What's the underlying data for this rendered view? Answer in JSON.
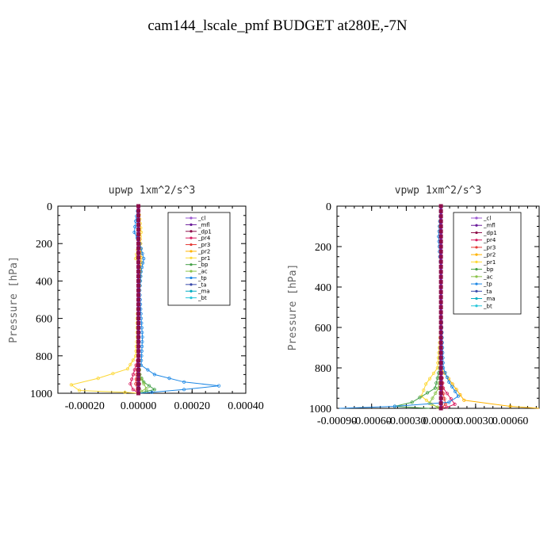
{
  "figure": {
    "title": "cam144_lscale_pmf  BUDGET at280E,-7N"
  },
  "chart_data": [
    {
      "type": "line",
      "title": "upwp  1xm^2/s^3",
      "ylabel": "Pressure [hPa]",
      "xlabel": "",
      "xlim": [
        -0.0003,
        0.0004
      ],
      "ylim": [
        1000,
        0
      ],
      "xticks": [
        -0.0002,
        0,
        0.0002,
        0.0004
      ],
      "xticklabels": [
        "-0.00020",
        "0.00000",
        "0.00020",
        "0.00040"
      ],
      "yticks": [
        0,
        200,
        400,
        600,
        800,
        1000
      ],
      "yticklabels": [
        "0",
        "200",
        "400",
        "600",
        "800",
        "1000"
      ],
      "legend_position": "top-right",
      "series": [
        {
          "name": "_cl",
          "color": "#9b59d0",
          "x": [
            0,
            0,
            0,
            0,
            0,
            0,
            0,
            0,
            0,
            0,
            0
          ],
          "y": [
            0,
            100,
            200,
            300,
            400,
            500,
            600,
            700,
            800,
            900,
            1000
          ]
        },
        {
          "name": "_mfl",
          "color": "#6a1b9a",
          "x": [
            0,
            0,
            0,
            0,
            0,
            0,
            0,
            0,
            0,
            0,
            0
          ],
          "y": [
            0,
            100,
            200,
            300,
            400,
            500,
            600,
            700,
            800,
            900,
            1000
          ]
        },
        {
          "name": "_dp1",
          "color": "#8e0f4a",
          "x": [
            0,
            0,
            0,
            0,
            0,
            0,
            0,
            0,
            0,
            5e-06,
            2e-06
          ],
          "y": [
            0,
            100,
            200,
            300,
            400,
            500,
            600,
            700,
            800,
            900,
            1000
          ]
        },
        {
          "name": "_pr4",
          "color": "#d81b60",
          "x": [
            0,
            0,
            0,
            0,
            0,
            0,
            0,
            0,
            2e-06,
            -3e-05,
            -2e-05,
            0
          ],
          "y": [
            0,
            100,
            200,
            300,
            400,
            500,
            600,
            700,
            800,
            950,
            980,
            1000
          ]
        },
        {
          "name": "_pr3",
          "color": "#e53935",
          "x": [
            0,
            0,
            0,
            0,
            0,
            0,
            0,
            0,
            0,
            -1e-05,
            -5e-06,
            0
          ],
          "y": [
            0,
            100,
            200,
            300,
            400,
            500,
            600,
            700,
            800,
            950,
            980,
            1000
          ]
        },
        {
          "name": "_pr2",
          "color": "#ffb300",
          "x": [
            0,
            3e-06,
            8e-06,
            1e-05,
            5e-06,
            0,
            0,
            0,
            0,
            0
          ],
          "y": [
            0,
            130,
            200,
            300,
            400,
            500,
            600,
            700,
            800,
            1000
          ]
        },
        {
          "name": "_pr1",
          "color": "#fdd835",
          "x": [
            0,
            1e-05,
            -1e-05,
            5e-06,
            5e-06,
            0,
            -5e-06,
            -5e-06,
            -1e-05,
            -4e-05,
            -0.00015,
            -0.00025,
            -0.00022,
            -5e-05,
            0
          ],
          "y": [
            0,
            140,
            280,
            300,
            400,
            500,
            600,
            700,
            800,
            870,
            920,
            955,
            985,
            995,
            1000
          ]
        },
        {
          "name": "_bp",
          "color": "#43a047",
          "x": [
            0,
            0,
            0,
            0,
            0,
            0,
            0,
            0,
            0,
            3e-06,
            2e-05,
            4e-05,
            6e-05,
            3e-05,
            0
          ],
          "y": [
            0,
            100,
            200,
            300,
            400,
            500,
            600,
            700,
            800,
            900,
            940,
            960,
            980,
            990,
            1000
          ]
        },
        {
          "name": "_ac",
          "color": "#8bc34a",
          "x": [
            0,
            0,
            0,
            0,
            0,
            0,
            0,
            0,
            2e-06,
            5e-06,
            2e-05,
            3e-05,
            1e-05,
            0
          ],
          "y": [
            0,
            100,
            200,
            300,
            400,
            500,
            600,
            700,
            800,
            900,
            950,
            975,
            990,
            1000
          ]
        },
        {
          "name": "_tp",
          "color": "#1e88e5",
          "x": [
            0,
            -1e-05,
            -1.5e-05,
            5e-06,
            2e-05,
            1e-05,
            5e-06,
            1e-05,
            1.5e-05,
            1e-05,
            6e-05,
            0.00017,
            0.0003,
            0.00017,
            5e-05,
            0
          ],
          "y": [
            0,
            80,
            140,
            200,
            280,
            350,
            450,
            600,
            700,
            850,
            900,
            940,
            960,
            980,
            995,
            1000
          ]
        },
        {
          "name": "_ta",
          "color": "#3949ab",
          "x": [
            0,
            0,
            0,
            0,
            0,
            0,
            0,
            0,
            0,
            0,
            0
          ],
          "y": [
            0,
            100,
            200,
            300,
            400,
            500,
            600,
            700,
            800,
            900,
            1000
          ]
        },
        {
          "name": "_ma",
          "color": "#00acc1",
          "x": [
            0,
            0,
            0,
            0,
            0,
            0,
            0,
            0,
            0,
            0,
            0
          ],
          "y": [
            0,
            100,
            200,
            300,
            400,
            500,
            600,
            700,
            800,
            900,
            1000
          ]
        },
        {
          "name": "_bt",
          "color": "#26c6da",
          "x": [
            0,
            0,
            0,
            0,
            0,
            0,
            0,
            0,
            0,
            0,
            0
          ],
          "y": [
            0,
            100,
            200,
            300,
            400,
            500,
            600,
            700,
            800,
            900,
            1000
          ]
        }
      ]
    },
    {
      "type": "line",
      "title": "vpwp  1xm^2/s^3",
      "ylabel": "Pressure [hPa]",
      "xlabel": "",
      "xlim": [
        -0.0009,
        0.00085
      ],
      "ylim": [
        1000,
        0
      ],
      "xticks": [
        -0.0009,
        -0.0006,
        -0.0003,
        0,
        0.0003,
        0.0006
      ],
      "xticklabels": [
        "-0.00090",
        "-0.00060",
        "-0.00030",
        "0.00000",
        "0.00030",
        "0.00060"
      ],
      "yticks": [
        0,
        200,
        400,
        600,
        800,
        1000
      ],
      "yticklabels": [
        "0",
        "200",
        "400",
        "600",
        "800",
        "1000"
      ],
      "legend_position": "top-right",
      "series": [
        {
          "name": "_cl",
          "color": "#9b59d0",
          "x": [
            0,
            0,
            0,
            0,
            0,
            0,
            0,
            0,
            0,
            0,
            0
          ],
          "y": [
            0,
            100,
            200,
            300,
            400,
            500,
            600,
            700,
            800,
            900,
            1000
          ]
        },
        {
          "name": "_mfl",
          "color": "#6a1b9a",
          "x": [
            0,
            0,
            0,
            0,
            0,
            0,
            0,
            0,
            0,
            0,
            0
          ],
          "y": [
            0,
            100,
            200,
            300,
            400,
            500,
            600,
            700,
            800,
            900,
            1000
          ]
        },
        {
          "name": "_dp1",
          "color": "#8e0f4a",
          "x": [
            0,
            0,
            0,
            0,
            0,
            0,
            0,
            0,
            0,
            1e-05,
            0
          ],
          "y": [
            0,
            100,
            200,
            300,
            400,
            500,
            600,
            700,
            800,
            900,
            1000
          ]
        },
        {
          "name": "_pr4",
          "color": "#d81b60",
          "x": [
            0,
            0,
            0,
            0,
            0,
            0,
            0,
            0,
            0,
            2e-05,
            0.00012,
            5e-05,
            0
          ],
          "y": [
            0,
            100,
            200,
            300,
            400,
            500,
            600,
            700,
            800,
            900,
            980,
            995,
            1000
          ]
        },
        {
          "name": "_pr3",
          "color": "#e53935",
          "x": [
            0,
            0,
            0,
            0,
            0,
            0,
            0,
            0,
            0,
            1e-05,
            4e-05,
            1e-05,
            0
          ],
          "y": [
            0,
            100,
            200,
            300,
            400,
            500,
            600,
            700,
            800,
            900,
            980,
            995,
            1000
          ]
        },
        {
          "name": "_pr2",
          "color": "#ffb300",
          "x": [
            0,
            0,
            0,
            0,
            0,
            0,
            0,
            0,
            0,
            0.0002,
            0.0006,
            0.00085
          ],
          "y": [
            0,
            100,
            200,
            300,
            400,
            500,
            600,
            700,
            800,
            960,
            990,
            1000
          ]
        },
        {
          "name": "_pr1",
          "color": "#fdd835",
          "x": [
            0,
            -1e-05,
            -5e-06,
            0,
            0,
            0,
            0,
            -3e-05,
            -0.00013,
            -0.00017,
            -8e-05,
            0
          ],
          "y": [
            0,
            100,
            200,
            300,
            400,
            500,
            600,
            800,
            880,
            940,
            980,
            1000
          ]
        },
        {
          "name": "_bp",
          "color": "#43a047",
          "x": [
            0,
            0,
            0,
            0,
            0,
            0,
            0,
            -1e-05,
            -5e-05,
            -0.00025,
            -0.0004,
            -0.0001
          ],
          "y": [
            0,
            100,
            200,
            300,
            400,
            500,
            600,
            800,
            900,
            970,
            990,
            1000
          ]
        },
        {
          "name": "_ac",
          "color": "#8bc34a",
          "x": [
            0,
            0,
            0,
            0,
            0,
            0,
            0,
            0,
            -2e-05,
            -0.0001,
            -3e-05,
            0
          ],
          "y": [
            0,
            100,
            200,
            300,
            400,
            500,
            600,
            800,
            900,
            975,
            995,
            1000
          ]
        },
        {
          "name": "_tp",
          "color": "#1e88e5",
          "x": [
            0,
            -2e-05,
            -1e-05,
            0,
            0,
            0,
            2e-05,
            7e-05,
            0.00015,
            7e-05,
            -0.0004,
            -0.00088
          ],
          "y": [
            0,
            150,
            250,
            300,
            400,
            500,
            800,
            870,
            940,
            970,
            990,
            1000
          ]
        },
        {
          "name": "_ta",
          "color": "#3949ab",
          "x": [
            0,
            0,
            0,
            0,
            0,
            0,
            0,
            0,
            0,
            0,
            0
          ],
          "y": [
            0,
            100,
            200,
            300,
            400,
            500,
            600,
            700,
            800,
            900,
            1000
          ]
        },
        {
          "name": "_ma",
          "color": "#00acc1",
          "x": [
            0,
            0,
            0,
            0,
            0,
            0,
            0,
            0,
            0,
            0,
            0
          ],
          "y": [
            0,
            100,
            200,
            300,
            400,
            500,
            600,
            700,
            800,
            900,
            1000
          ]
        },
        {
          "name": "_bt",
          "color": "#26c6da",
          "x": [
            0,
            0,
            0,
            0,
            0,
            0,
            0,
            0,
            0,
            0,
            0
          ],
          "y": [
            0,
            100,
            200,
            300,
            400,
            500,
            600,
            700,
            800,
            900,
            1000
          ]
        }
      ]
    }
  ]
}
